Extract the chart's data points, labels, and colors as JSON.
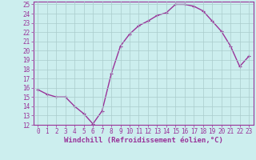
{
  "x": [
    0,
    1,
    2,
    3,
    4,
    5,
    6,
    7,
    8,
    9,
    10,
    11,
    12,
    13,
    14,
    15,
    16,
    17,
    18,
    19,
    20,
    21,
    22,
    23
  ],
  "y": [
    15.8,
    15.3,
    15.0,
    15.0,
    14.0,
    13.2,
    12.1,
    13.5,
    17.5,
    20.5,
    21.8,
    22.7,
    23.2,
    23.8,
    24.1,
    25.0,
    25.0,
    24.8,
    24.3,
    23.2,
    22.1,
    20.5,
    18.3,
    19.4
  ],
  "line_color": "#993399",
  "marker": "+",
  "marker_size": 3,
  "background_color": "#cceeee",
  "grid_color": "#aacccc",
  "xlabel": "Windchill (Refroidissement éolien,°C)",
  "ylim": [
    12,
    25
  ],
  "xlim": [
    -0.5,
    23.5
  ],
  "yticks": [
    12,
    13,
    14,
    15,
    16,
    17,
    18,
    19,
    20,
    21,
    22,
    23,
    24,
    25
  ],
  "xticks": [
    0,
    1,
    2,
    3,
    4,
    5,
    6,
    7,
    8,
    9,
    10,
    11,
    12,
    13,
    14,
    15,
    16,
    17,
    18,
    19,
    20,
    21,
    22,
    23
  ],
  "tick_label_color": "#993399",
  "tick_label_size": 5.5,
  "xlabel_size": 6.5,
  "xlabel_color": "#993399",
  "line_width": 1.0,
  "spine_color": "#993399"
}
